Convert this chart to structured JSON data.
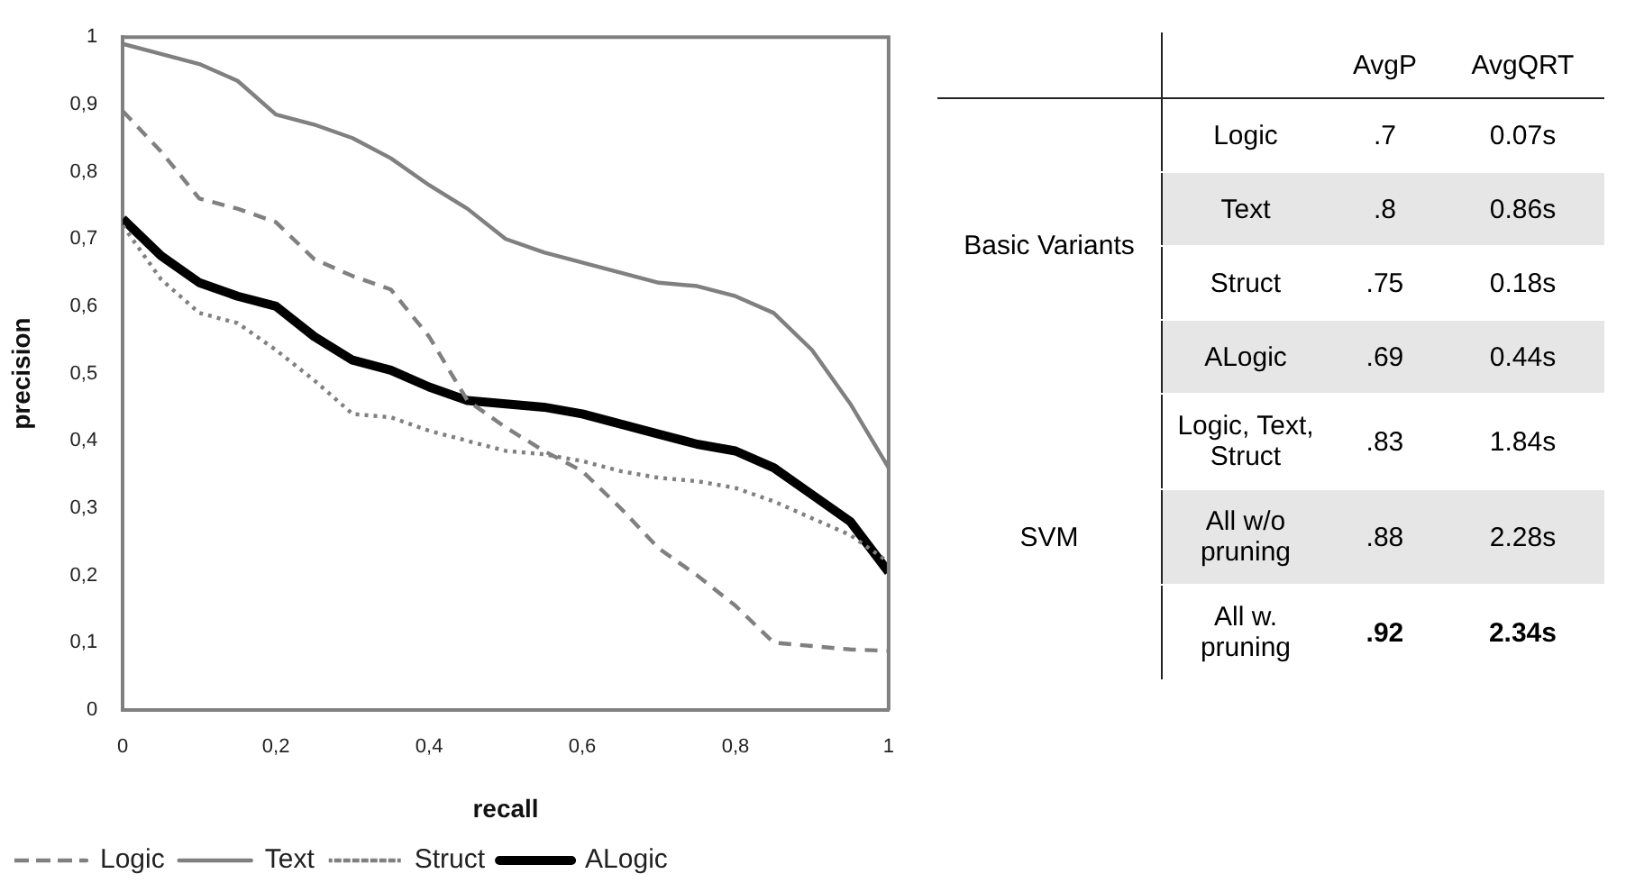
{
  "chart_data": [
    {
      "type": "line",
      "xlabel": "recall",
      "ylabel": "precision",
      "x": [
        0,
        0.05,
        0.1,
        0.15,
        0.2,
        0.25,
        0.3,
        0.35,
        0.4,
        0.45,
        0.5,
        0.55,
        0.6,
        0.65,
        0.7,
        0.75,
        0.8,
        0.85,
        0.9,
        0.95,
        1
      ],
      "series": [
        {
          "name": "Logic",
          "color": "#808080",
          "line_style": "dashed",
          "values": [
            0.89,
            0.83,
            0.76,
            0.745,
            0.725,
            0.67,
            0.645,
            0.625,
            0.555,
            0.46,
            0.42,
            0.385,
            0.355,
            0.3,
            0.24,
            0.2,
            0.155,
            0.1,
            0.095,
            0.09,
            0.088
          ]
        },
        {
          "name": "Text",
          "color": "#808080",
          "line_style": "solid",
          "values": [
            0.99,
            0.975,
            0.96,
            0.935,
            0.885,
            0.87,
            0.85,
            0.82,
            0.78,
            0.745,
            0.7,
            0.68,
            0.665,
            0.65,
            0.635,
            0.63,
            0.615,
            0.59,
            0.535,
            0.455,
            0.36
          ]
        },
        {
          "name": "Struct",
          "color": "#808080",
          "line_style": "dotted",
          "values": [
            0.72,
            0.64,
            0.59,
            0.575,
            0.535,
            0.49,
            0.44,
            0.435,
            0.415,
            0.4,
            0.385,
            0.38,
            0.37,
            0.355,
            0.345,
            0.34,
            0.33,
            0.31,
            0.285,
            0.26,
            0.22
          ]
        },
        {
          "name": "ALogic",
          "color": "#000000",
          "line_style": "solid",
          "values": [
            0.73,
            0.675,
            0.635,
            0.615,
            0.6,
            0.555,
            0.52,
            0.505,
            0.48,
            0.46,
            0.455,
            0.45,
            0.44,
            0.425,
            0.41,
            0.395,
            0.385,
            0.36,
            0.32,
            0.28,
            0.205
          ]
        }
      ],
      "xlim": [
        0,
        1
      ],
      "xticks": [
        0,
        {
          "value": 0.2,
          "label": "0,2"
        },
        {
          "value": 0.4,
          "label": "0,4"
        },
        {
          "value": 0.6,
          "label": "0,6"
        },
        {
          "value": 0.8,
          "label": "0,8"
        },
        1
      ],
      "ylim": [
        0,
        1
      ],
      "yticks": [
        0,
        {
          "value": 0.1,
          "label": "0,1"
        },
        {
          "value": 0.2,
          "label": "0,2"
        },
        {
          "value": 0.3,
          "label": "0,3"
        },
        {
          "value": 0.4,
          "label": "0,4"
        },
        {
          "value": 0.5,
          "label": "0,5"
        },
        {
          "value": 0.6,
          "label": "0,6"
        },
        {
          "value": 0.7,
          "label": "0,7"
        },
        {
          "value": 0.8,
          "label": "0,8"
        },
        {
          "value": 0.9,
          "label": "0,9"
        },
        1
      ],
      "grid": false,
      "legend": "bottom left",
      "marker": "none"
    },
    {
      "type": "other",
      "categories": [
        "AvgP",
        "AvgQRT"
      ],
      "y_categories": [
        "Logic",
        "Text",
        "Struct",
        "ALogic",
        "Logic, Text, Struct",
        "All w/o pruning",
        "All w. pruning"
      ],
      "cell_labels": [
        [
          ".7",
          "0.07s"
        ],
        [
          ".8",
          "0.86s"
        ],
        [
          ".75",
          "0.18s"
        ],
        [
          ".69",
          "0.44s"
        ],
        [
          ".83",
          "1.84s"
        ],
        [
          ".88",
          "2.28s"
        ],
        [
          ".92",
          "2.34s"
        ]
      ],
      "annotations": [
        "Basic Variants",
        "SVM"
      ]
    }
  ]
}
